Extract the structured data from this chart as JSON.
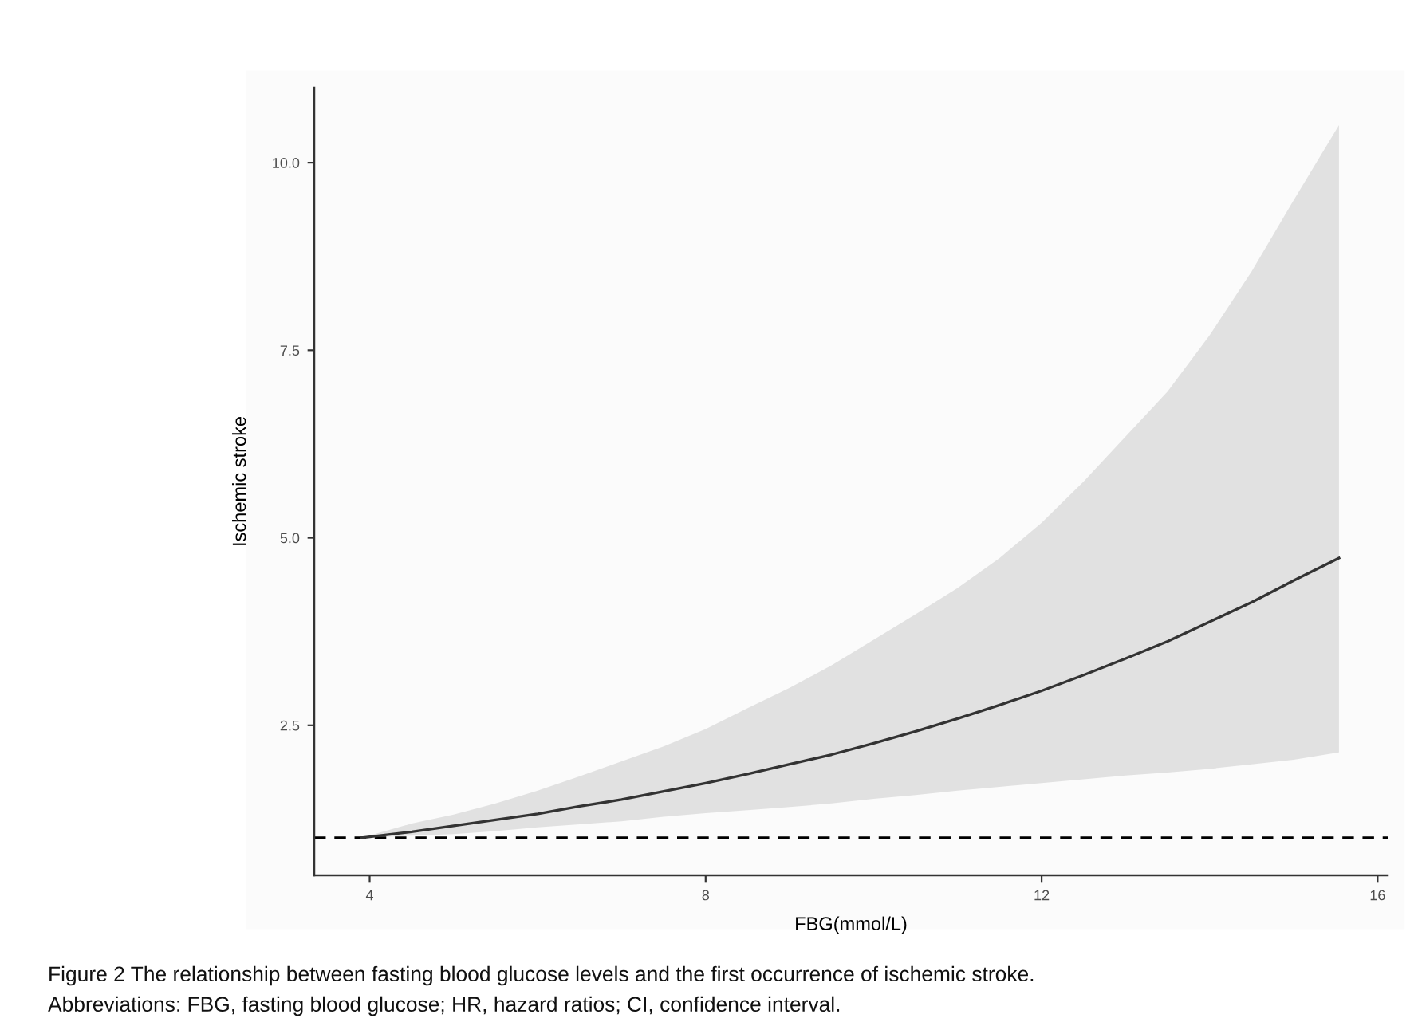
{
  "chart_data": {
    "type": "line",
    "xlabel": "FBG(mmol/L)",
    "ylabel": "Ischemic stroke",
    "x": [
      3.9,
      4.5,
      5,
      5.5,
      6,
      6.5,
      7,
      7.5,
      8,
      8.5,
      9,
      9.5,
      10,
      10.5,
      11,
      11.5,
      12,
      12.5,
      13,
      13.5,
      14,
      14.5,
      15,
      15.54
    ],
    "series": [
      {
        "color": "#333333",
        "values": [
          1.0,
          1.08,
          1.16,
          1.24,
          1.32,
          1.42,
          1.51,
          1.62,
          1.73,
          1.85,
          1.98,
          2.11,
          2.26,
          2.42,
          2.59,
          2.77,
          2.96,
          3.17,
          3.39,
          3.62,
          3.88,
          4.14,
          4.43,
          4.73
        ],
        "lower": [
          1.0,
          1.03,
          1.05,
          1.09,
          1.14,
          1.18,
          1.22,
          1.28,
          1.33,
          1.37,
          1.41,
          1.46,
          1.52,
          1.57,
          1.63,
          1.68,
          1.73,
          1.78,
          1.83,
          1.87,
          1.92,
          1.98,
          2.04,
          2.14
        ],
        "upper": [
          1.0,
          1.19,
          1.31,
          1.46,
          1.63,
          1.82,
          2.02,
          2.22,
          2.45,
          2.73,
          3.0,
          3.3,
          3.64,
          3.98,
          4.33,
          4.73,
          5.2,
          5.75,
          6.35,
          6.95,
          7.7,
          8.55,
          9.5,
          10.5
        ]
      }
    ],
    "xlim": [
      3.34,
      16.12
    ],
    "ylim": [
      0.5,
      11.0
    ],
    "xticks": [
      4,
      8,
      12,
      16
    ],
    "yticks": [
      2.5,
      {
        "value": 5,
        "label": "5.0"
      },
      7.5,
      {
        "value": 10,
        "label": "10.0"
      }
    ],
    "ref_lines": [
      {
        "axis": "y",
        "value": 1,
        "color": "#000000",
        "line_style": "dashed"
      }
    ],
    "grid": false,
    "legend": false,
    "line_style": "solid",
    "annotations": [
      "Figure 2 The relationship between fasting blood glucose levels and the first occurrence of ischemic stroke.",
      "Abbreviations: FBG, fasting blood glucose; HR, hazard ratios; CI, confidence interval."
    ]
  }
}
